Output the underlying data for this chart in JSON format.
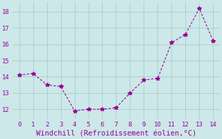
{
  "x": [
    0,
    1,
    2,
    3,
    4,
    5,
    6,
    7,
    8,
    9,
    10,
    11,
    12,
    13,
    14
  ],
  "y": [
    14.1,
    14.2,
    13.5,
    13.4,
    11.9,
    12.0,
    12.0,
    12.1,
    13.0,
    13.8,
    13.9,
    16.1,
    16.6,
    18.2,
    16.2
  ],
  "line_color": "#990099",
  "marker": "*",
  "marker_size": 4,
  "xlabel": "Windchill (Refroidissement éolien,°C)",
  "xlim": [
    -0.5,
    14.5
  ],
  "ylim": [
    11.4,
    18.6
  ],
  "yticks": [
    12,
    13,
    14,
    15,
    16,
    17,
    18
  ],
  "xticks": [
    0,
    1,
    2,
    3,
    4,
    5,
    6,
    7,
    8,
    9,
    10,
    11,
    12,
    13,
    14
  ],
  "bg_color": "#cce8e8",
  "grid_color": "#aacccc",
  "tick_color": "#990099",
  "xlabel_color": "#990099",
  "xlabel_fontsize": 7.5,
  "tick_fontsize": 6.5
}
